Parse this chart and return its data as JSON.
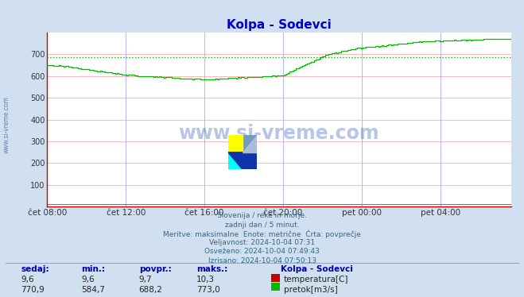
{
  "title": "Kolpa - Sodevci",
  "title_color": "#0000cc",
  "bg_color": "#d0e0f0",
  "plot_bg_color": "#ffffff",
  "grid_color_h": "#ffaaaa",
  "grid_color_v": "#aaaaff",
  "axis_color": "#cc0000",
  "ylabel_values": [
    100,
    200,
    300,
    400,
    500,
    600,
    700
  ],
  "ylim": [
    0,
    800
  ],
  "xtick_labels": [
    "čet 08:00",
    "čet 12:00",
    "čet 16:00",
    "čet 20:00",
    "pet 00:00",
    "pet 04:00"
  ],
  "xtick_positions": [
    0,
    240,
    480,
    720,
    960,
    1200
  ],
  "total_minutes": 1415,
  "pretok_color": "#00bb00",
  "pretok_avg_line": 688.2,
  "pretok_avg_color": "#00bb00",
  "temperatura_color": "#cc0000",
  "watermark_text": "www.si-vreme.com",
  "watermark_color": "#1144aa",
  "sidewatermark_text": "www.si-vreme.com",
  "info_lines": [
    "Slovenija / reke in morje.",
    "zadnji dan / 5 minut.",
    "Meritve: maksimalne  Enote: metrične  Črta: povprečje",
    "Veljavnost: 2024-10-04 07:31",
    "Osveženo: 2024-10-04 07:49:43",
    "Izrisano: 2024-10-04 07:50:13"
  ],
  "table_headers": [
    "sedaj:",
    "min.:",
    "povpr.:",
    "maks.:"
  ],
  "table_temp": [
    "9,6",
    "9,6",
    "9,7",
    "10,3"
  ],
  "table_flow": [
    "770,9",
    "584,7",
    "688,2",
    "773,0"
  ],
  "legend_station": "Kolpa - Sodevci",
  "font_color_table": "#0000aa",
  "font_color_info": "#336688"
}
